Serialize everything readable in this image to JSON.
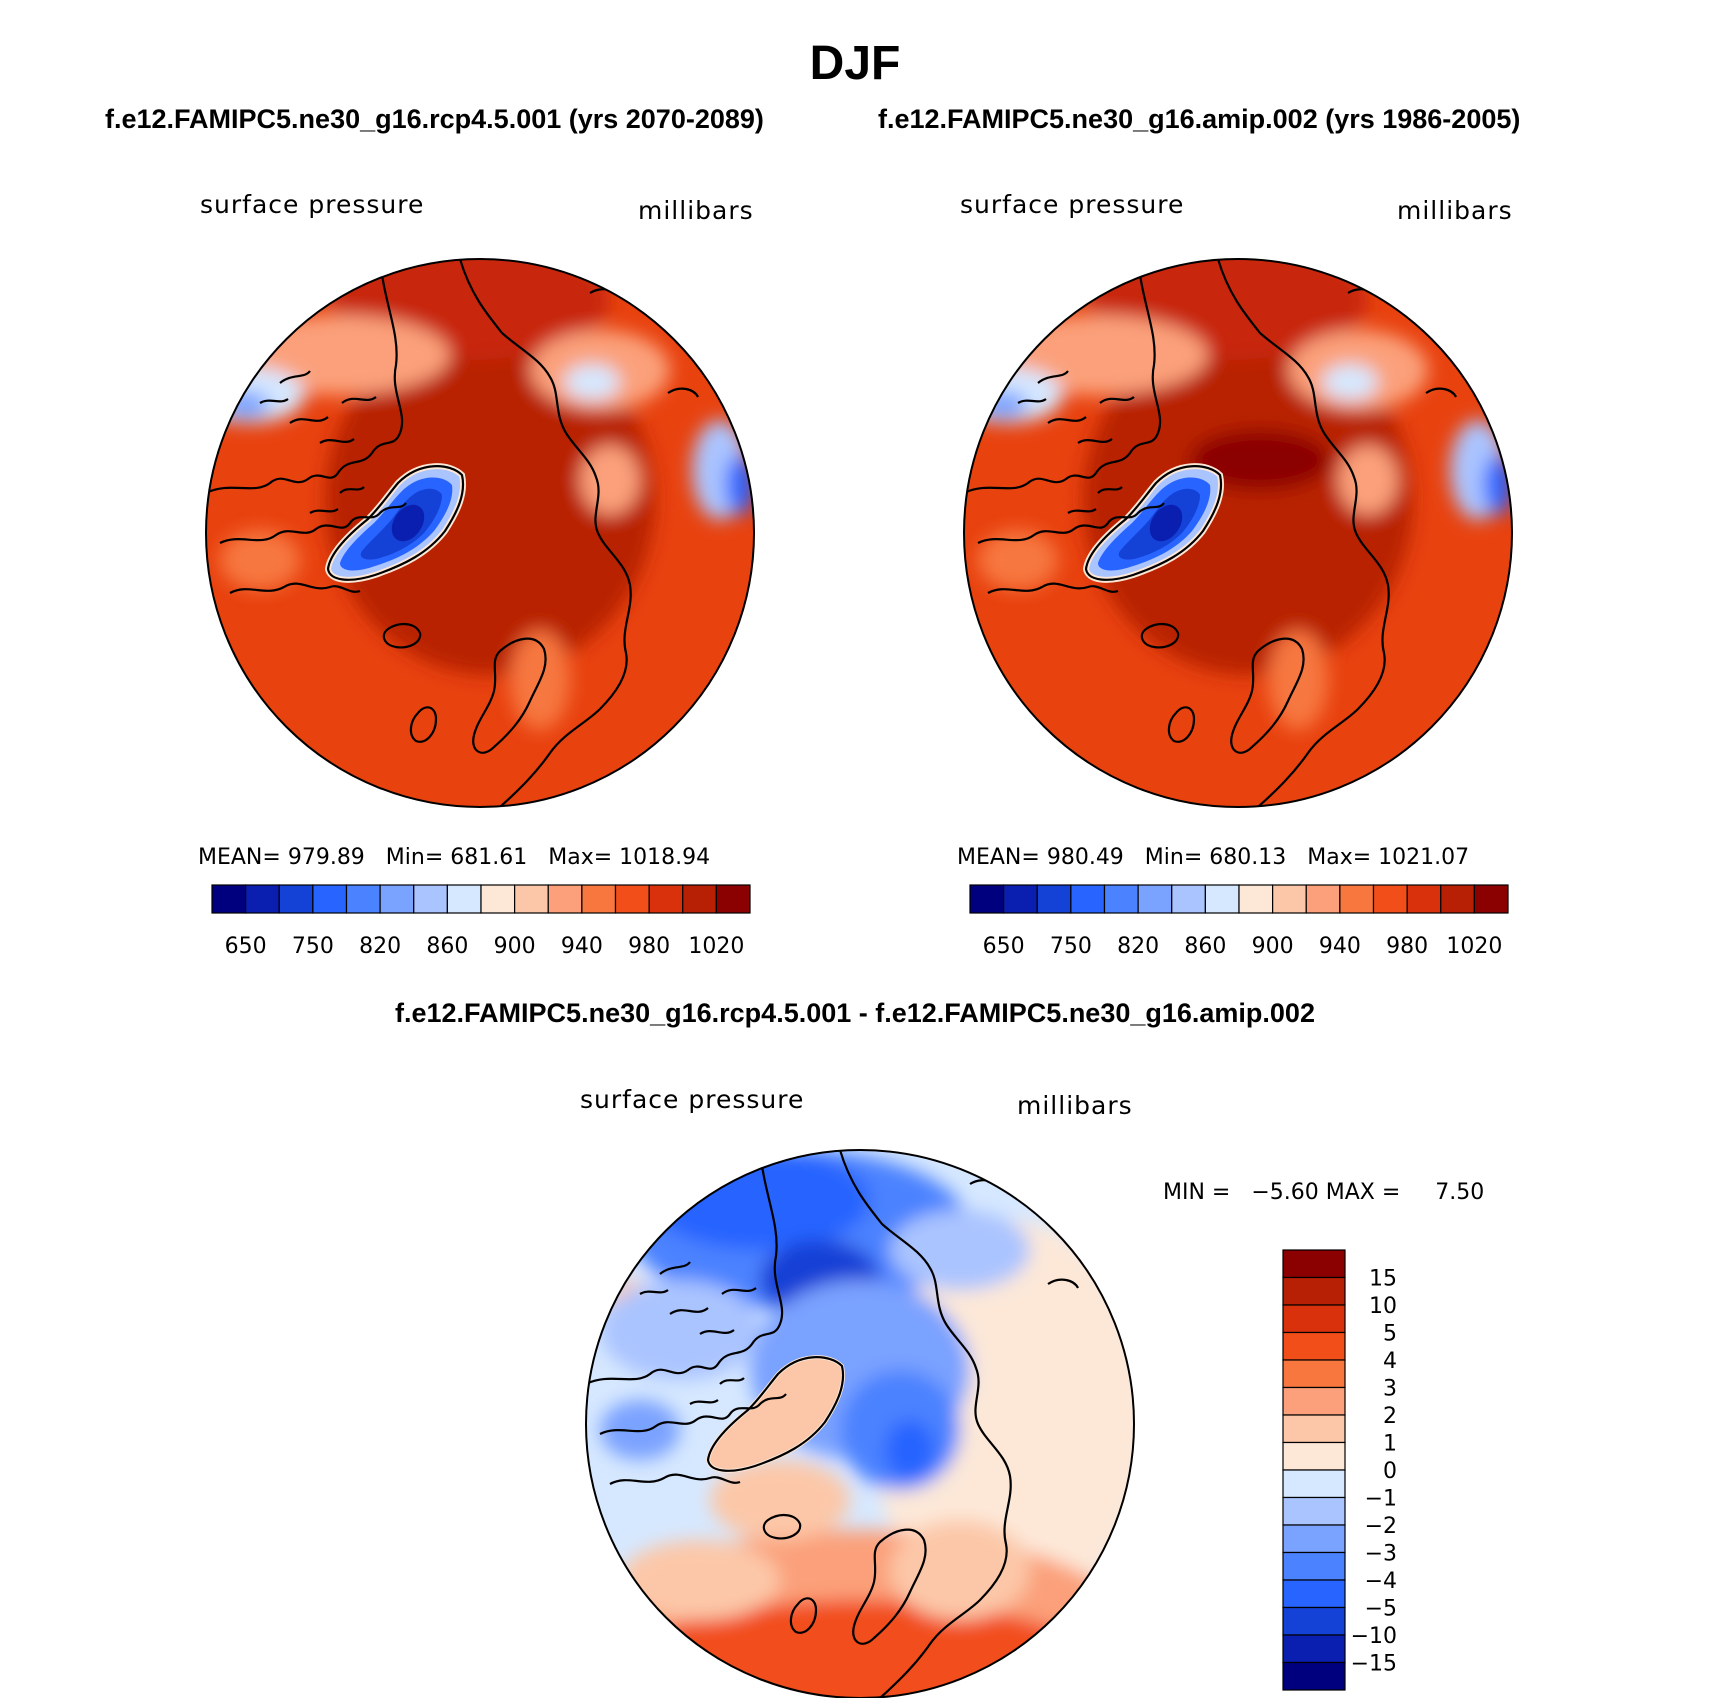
{
  "title": "DJF",
  "panels": [
    {
      "case_title": "f.e12.FAMIPC5.ne30_g16.rcp4.5.001 (yrs 2070-2089)",
      "variable": "surface pressure",
      "units": "millibars",
      "stats": {
        "mean_label": "MEAN=",
        "mean": "979.89",
        "min_label": "Min=",
        "min": "681.61",
        "max_label": "Max=",
        "max": "1018.94"
      }
    },
    {
      "case_title": "f.e12.FAMIPC5.ne30_g16.amip.002 (yrs 1986-2005)",
      "variable": "surface pressure",
      "units": "millibars",
      "stats": {
        "mean_label": "MEAN=",
        "mean": "980.49",
        "min_label": "Min=",
        "min": "680.13",
        "max_label": "Max=",
        "max": "1021.07"
      }
    }
  ],
  "field_colorbar": {
    "colors": [
      "#00007f",
      "#0a1fb0",
      "#1441d6",
      "#2864ff",
      "#4b82ff",
      "#7aa2ff",
      "#aac4ff",
      "#d6e8ff",
      "#fde8d8",
      "#fcc7a8",
      "#fba07a",
      "#f7773f",
      "#f24e1a",
      "#d9310c",
      "#b82005",
      "#8b0000"
    ],
    "tick_labels": [
      "650",
      "750",
      "820",
      "860",
      "900",
      "940",
      "980",
      "1020"
    ]
  },
  "difference": {
    "title": "f.e12.FAMIPC5.ne30_g16.rcp4.5.001 - f.e12.FAMIPC5.ne30_g16.amip.002",
    "variable": "surface pressure",
    "units": "millibars",
    "min_label": "MIN =",
    "min": "−5.60",
    "max_label": "MAX =",
    "max": "7.50",
    "colorbar": {
      "colors": [
        "#8b0000",
        "#b82005",
        "#d9310c",
        "#f24e1a",
        "#f7773f",
        "#fba07a",
        "#fcc7a8",
        "#fde8d8",
        "#d6e8ff",
        "#aac4ff",
        "#7aa2ff",
        "#4b82ff",
        "#2864ff",
        "#1441d6",
        "#0a1fb0",
        "#00007f"
      ],
      "tick_labels": [
        "15",
        "10",
        "5",
        "4",
        "3",
        "2",
        "1",
        "0",
        "−1",
        "−2",
        "−3",
        "−4",
        "−5",
        "−10",
        "−15"
      ]
    }
  }
}
